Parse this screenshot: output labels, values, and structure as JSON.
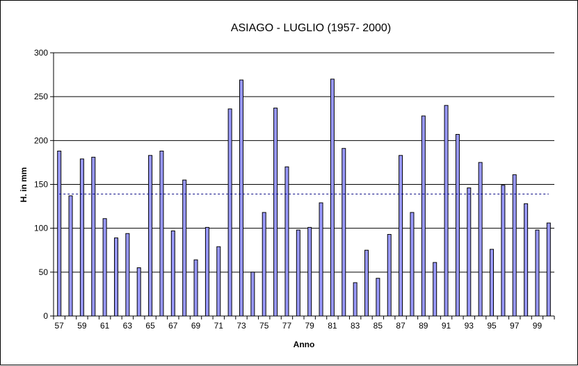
{
  "chart_data": {
    "type": "bar",
    "title": "ASIAGO - LUGLIO (1957- 2000)",
    "xlabel": "Anno",
    "ylabel": "H. in mm",
    "ylim": [
      0,
      300
    ],
    "yticks": [
      0,
      50,
      100,
      150,
      200,
      250,
      300
    ],
    "grid": true,
    "legend": "none",
    "categories": [
      "57",
      "58",
      "59",
      "60",
      "61",
      "62",
      "63",
      "64",
      "65",
      "66",
      "67",
      "68",
      "69",
      "70",
      "71",
      "72",
      "73",
      "74",
      "75",
      "76",
      "77",
      "78",
      "79",
      "80",
      "81",
      "82",
      "83",
      "84",
      "85",
      "86",
      "87",
      "88",
      "89",
      "90",
      "91",
      "92",
      "93",
      "94",
      "95",
      "96",
      "97",
      "98",
      "99",
      "00"
    ],
    "x_tick_labels": [
      "57",
      "",
      "59",
      "",
      "61",
      "",
      "63",
      "",
      "65",
      "",
      "67",
      "",
      "69",
      "",
      "71",
      "",
      "73",
      "",
      "75",
      "",
      "77",
      "",
      "79",
      "",
      "81",
      "",
      "83",
      "",
      "85",
      "",
      "87",
      "",
      "89",
      "",
      "91",
      "",
      "93",
      "",
      "95",
      "",
      "97",
      "",
      "99",
      ""
    ],
    "series": [
      {
        "values": [
          188,
          137,
          179,
          181,
          111,
          89,
          94,
          55,
          183,
          188,
          97,
          155,
          64,
          101,
          79,
          236,
          269,
          50,
          118,
          237,
          170,
          98,
          101,
          129,
          270,
          191,
          38,
          75,
          43,
          93,
          183,
          118,
          228,
          61,
          240,
          207,
          146,
          175,
          76,
          149,
          161,
          128,
          98,
          106
        ]
      }
    ],
    "mean_line": 139,
    "colors": {
      "bar_fill": "#9999ff",
      "bar_stroke": "#000000",
      "mean_line": "#000080",
      "grid": "#000000"
    }
  }
}
